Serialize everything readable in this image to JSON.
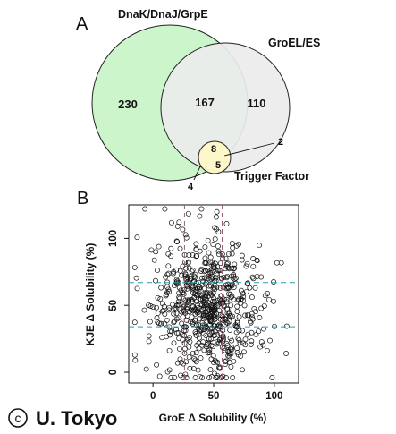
{
  "panel_a": {
    "letter": "A",
    "sets": [
      {
        "name": "DnaK/DnaJ/GrpE",
        "color": "#ccf5cc"
      },
      {
        "name": "GroEL/ES",
        "color": "#ececec"
      },
      {
        "name": "Trigger Factor",
        "color": "#fff8c8"
      }
    ],
    "regions": {
      "dnak_only": "230",
      "dnak_groel": "167",
      "groel_only": "110",
      "all_three": "8",
      "groel_tf": "2",
      "dnak_tf": "5",
      "tf_only": "4"
    }
  },
  "panel_b": {
    "letter": "B",
    "xlabel": "GroE Δ Solubility (%)",
    "ylabel": "KJE Δ Solubility (%)",
    "x_ticks": [
      "0",
      "50",
      "100"
    ],
    "y_ticks": [
      "0",
      "50",
      "100"
    ]
  },
  "chart_data": {
    "type": "scatter",
    "xlabel": "GroE Δ Solubility (%)",
    "ylabel": "KJE Δ Solubility (%)",
    "xlim": [
      -20,
      120
    ],
    "ylim": [
      -8,
      125
    ],
    "x_ticks": [
      0,
      50,
      100
    ],
    "y_ticks": [
      0,
      50,
      100
    ],
    "vertical_reference_lines": [
      26,
      57
    ],
    "horizontal_reference_lines": [
      34,
      67
    ],
    "point_count": 700,
    "cloud_center": [
      45,
      48
    ]
  },
  "copyright": {
    "symbol": "c",
    "text": "U. Tokyo"
  }
}
